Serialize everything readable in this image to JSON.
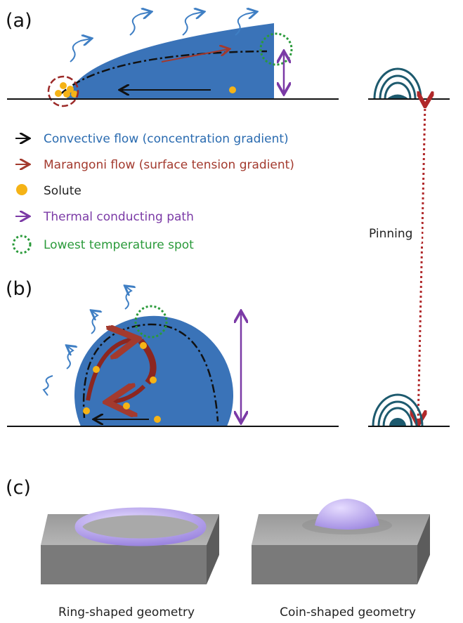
{
  "panels": {
    "a": "(a)",
    "b": "(b)",
    "c": "(c)"
  },
  "legend": [
    "Convective flow (concentration gradient)",
    "Marangoni flow (surface tension gradient)",
    "Solute",
    "Thermal conducting path",
    "Lowest temperature spot"
  ],
  "annotation": "Pinning",
  "captions": [
    "Ring-shaped geometry",
    "Coin-shaped geometry"
  ]
}
